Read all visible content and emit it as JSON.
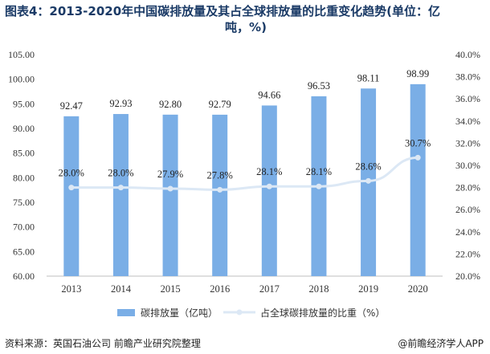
{
  "title": {
    "line1": "图表4：2013-2020年中国碳排放量及其占全球排放量的比重变化趋势(单位：亿",
    "line2": "吨，%)"
  },
  "source": "资料来源：英国石油公司 前瞻产业研究院整理",
  "credit": "@前瞻经济学人APP",
  "chart_data": {
    "type": "bar",
    "categories": [
      "2013",
      "2014",
      "2015",
      "2016",
      "2017",
      "2018",
      "2019",
      "2020"
    ],
    "series": [
      {
        "name": "碳排放量（亿吨）",
        "type": "bar",
        "axis": "left",
        "color": "#7aaee6",
        "values": [
          92.47,
          92.93,
          92.8,
          92.79,
          94.66,
          96.53,
          98.11,
          98.99
        ],
        "labels": [
          "92.47",
          "92.93",
          "92.80",
          "92.79",
          "94.66",
          "96.53",
          "98.11",
          "98.99"
        ]
      },
      {
        "name": "占全球碳排放量的比重（%）",
        "type": "line",
        "axis": "right",
        "color": "#dce8f5",
        "values": [
          28.0,
          28.0,
          27.9,
          27.8,
          28.1,
          28.1,
          28.6,
          30.7
        ],
        "labels": [
          "28.0%",
          "28.0%",
          "27.9%",
          "27.8%",
          "28.1%",
          "28.1%",
          "28.6%",
          "30.7%"
        ]
      }
    ],
    "y_left": {
      "min": 60,
      "max": 105,
      "step": 5,
      "tick_labels": [
        "60.00",
        "65.00",
        "70.00",
        "75.00",
        "80.00",
        "85.00",
        "90.00",
        "95.00",
        "100.00",
        "105.00"
      ]
    },
    "y_right": {
      "min": 20,
      "max": 40,
      "step": 2,
      "tick_labels": [
        "20.0%",
        "22.0%",
        "24.0%",
        "26.0%",
        "28.0%",
        "30.0%",
        "32.0%",
        "34.0%",
        "36.0%",
        "38.0%",
        "40.0%"
      ]
    },
    "grid": false,
    "legend": "bottom"
  }
}
